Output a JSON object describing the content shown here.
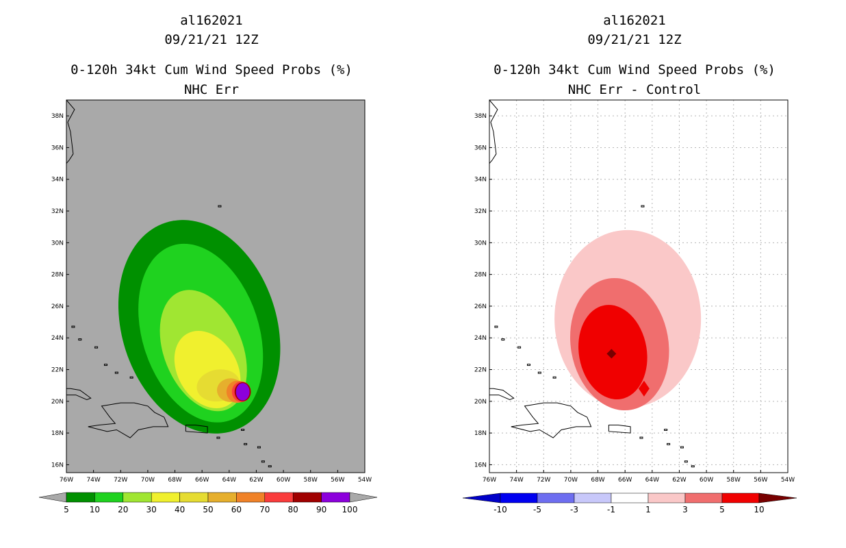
{
  "panels": [
    {
      "title_lines": [
        "al162021",
        "09/21/21 12Z",
        "0-120h 34kt Cum Wind Speed Probs (%)",
        "NHC Err"
      ]
    },
    {
      "title_lines": [
        "al162021",
        "09/21/21 12Z",
        "0-120h 34kt Cum Wind Speed Probs (%)",
        "NHC Err - Control"
      ]
    }
  ],
  "chart_data": [
    {
      "type": "heatmap",
      "title": "0-120h 34kt Cum Wind Speed Probs (%) - NHC Err",
      "storm": "al162021",
      "time": "09/21/21 12Z",
      "x_range_deg_lon": [
        -76,
        -54
      ],
      "y_range_deg_lat": [
        15.5,
        39
      ],
      "x_ticks": [
        "76W",
        "74W",
        "72W",
        "70W",
        "68W",
        "66W",
        "64W",
        "62W",
        "60W",
        "58W",
        "56W",
        "54W"
      ],
      "y_ticks": [
        "16N",
        "18N",
        "20N",
        "22N",
        "24N",
        "26N",
        "28N",
        "30N",
        "32N",
        "34N",
        "36N",
        "38N"
      ],
      "grid": false,
      "background": "#a9a9a9",
      "levels": [
        5,
        10,
        20,
        30,
        40,
        50,
        60,
        70,
        80,
        90,
        100
      ],
      "level_labels": [
        "5",
        "10",
        "20",
        "30",
        "40",
        "50",
        "60",
        "70",
        "80",
        "90",
        "100"
      ],
      "level_colors": [
        "#009000",
        "#1fd21f",
        "#a0e632",
        "#f0f02e",
        "#e6dc32",
        "#e6af2d",
        "#f08228",
        "#fa3c3c",
        "#a00000",
        "#8c00dc"
      ],
      "center_lon": -63,
      "center_lat": 20.6,
      "max_value": 100
    },
    {
      "type": "heatmap",
      "title": "0-120h 34kt Cum Wind Speed Probs (%) - NHC Err - Control",
      "storm": "al162021",
      "time": "09/21/21 12Z",
      "x_range_deg_lon": [
        -76,
        -54
      ],
      "y_range_deg_lat": [
        15.5,
        39
      ],
      "x_ticks": [
        "76W",
        "74W",
        "72W",
        "70W",
        "68W",
        "66W",
        "64W",
        "62W",
        "60W",
        "58W",
        "56W",
        "54W"
      ],
      "y_ticks": [
        "16N",
        "18N",
        "20N",
        "22N",
        "24N",
        "26N",
        "28N",
        "30N",
        "32N",
        "34N",
        "36N",
        "38N"
      ],
      "grid": true,
      "background": "#ffffff",
      "levels": [
        -10,
        -5,
        -3,
        -1,
        1,
        3,
        5,
        10
      ],
      "level_labels": [
        "-10",
        "-5",
        "-3",
        "-1",
        "1",
        "3",
        "5",
        "10"
      ],
      "level_colors": [
        "#0000c8",
        "#0000f0",
        "#6e6ef0",
        "#c8c8fa",
        "#ffffff",
        "#fac8c8",
        "#f06e6e",
        "#f00000",
        "#780000"
      ],
      "max_value_location": {
        "lon": -67,
        "lat": 23
      }
    }
  ]
}
